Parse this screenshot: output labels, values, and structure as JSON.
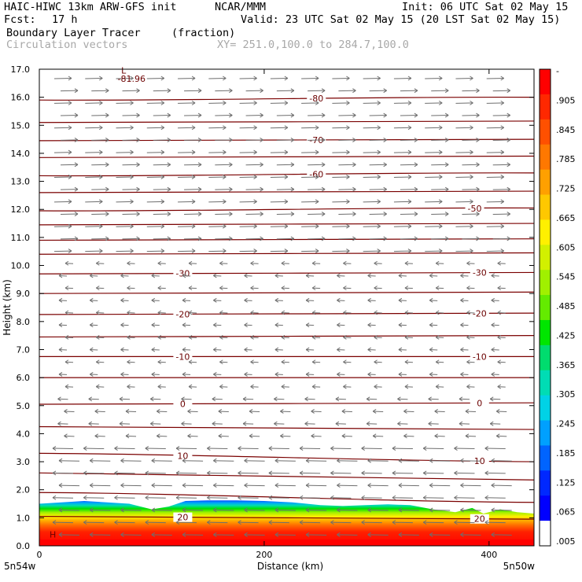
{
  "header": {
    "title_left": "HAIC-HIWC 13km ARW-GFS init",
    "org": "NCAR/MMM",
    "init": "Init: 06 UTC Sat 02 May 15",
    "fcst_label": "Fcst:",
    "fcst_value": "17 h",
    "valid": "Valid: 23 UTC Sat 02 May 15 (20 LST Sat 02 May 15)",
    "field_name": "Boundary Layer Tracer",
    "field_units": "(fraction)",
    "vector_name": "Circulation vectors",
    "xy_range": "XY= 251.0,100.0 to 284.7,100.0"
  },
  "chart_data": {
    "type": "heatmap",
    "xlabel": "Distance (km)",
    "ylabel": "Height (km)",
    "xlim": [
      0,
      440
    ],
    "ylim": [
      0,
      17
    ],
    "x_ticks": [
      0,
      200,
      400
    ],
    "x_tick_labels": [
      "0",
      "200",
      "400"
    ],
    "y_ticks": [
      0,
      1,
      2,
      3,
      4,
      5,
      6,
      7,
      8,
      9,
      10,
      11,
      12,
      13,
      14,
      15,
      16,
      17
    ],
    "y_tick_labels": [
      "0.0",
      "1.0",
      "2.0",
      "3.0",
      "4.0",
      "5.0",
      "6.0",
      "7.0",
      "8.0",
      "9.0",
      "10.0",
      "11.0",
      "12.0",
      "13.0",
      "14.0",
      "15.0",
      "16.0",
      "17.0"
    ],
    "corner_labels": {
      "left": "5n54w",
      "right": "5n50w"
    },
    "colorbar": {
      "labels": [
        "-",
        ".905",
        ".845",
        ".785",
        ".725",
        ".665",
        ".605",
        ".545",
        ".485",
        ".425",
        ".365",
        ".305",
        ".245",
        ".185",
        ".125",
        ".065",
        ".005"
      ],
      "colors": [
        "#ff0000",
        "#ff2800",
        "#ff5000",
        "#ff7800",
        "#ffa000",
        "#ffc800",
        "#fff000",
        "#d2f000",
        "#a0f000",
        "#64eb00",
        "#00e600",
        "#00dc6e",
        "#00dcb4",
        "#00d2e6",
        "#00a0ff",
        "#0064ff",
        "#0028ff",
        "#0000ff",
        "#ffffff"
      ]
    },
    "tracer_surface": {
      "x": [
        0,
        20,
        40,
        60,
        80,
        100,
        115,
        130,
        150,
        175,
        200,
        225,
        250,
        270,
        290,
        310,
        330,
        350,
        370,
        385,
        395,
        410,
        425,
        440
      ],
      "top_height_km": [
        1.5,
        1.55,
        1.6,
        1.55,
        1.5,
        1.3,
        1.4,
        1.6,
        1.62,
        1.62,
        1.6,
        1.55,
        1.45,
        1.42,
        1.45,
        1.48,
        1.45,
        1.3,
        1.2,
        1.35,
        1.15,
        1.3,
        1.2,
        1.15
      ]
    },
    "isotherms": [
      {
        "label": "-80",
        "height_km": [
          15.9,
          16.0
        ]
      },
      {
        "label": "",
        "height_km": [
          15.1,
          15.15
        ]
      },
      {
        "label": "-70",
        "height_km": [
          14.45,
          14.5
        ]
      },
      {
        "label": "",
        "height_km": [
          13.85,
          13.9
        ]
      },
      {
        "label": "-60",
        "height_km": [
          13.2,
          13.3
        ]
      },
      {
        "label": "",
        "height_km": [
          12.6,
          12.65
        ]
      },
      {
        "label": "-50",
        "height_km": [
          11.95,
          12.05
        ]
      },
      {
        "label": "",
        "height_km": [
          11.45,
          11.5
        ]
      },
      {
        "label": "",
        "height_km": [
          10.9,
          10.95
        ]
      },
      {
        "label": "",
        "height_km": [
          10.4,
          10.45
        ]
      },
      {
        "label": "-30",
        "height_km": [
          9.7,
          9.75
        ]
      },
      {
        "label": "",
        "height_km": [
          9.0,
          9.05
        ]
      },
      {
        "label": "-20",
        "height_km": [
          8.25,
          8.3
        ]
      },
      {
        "label": "",
        "height_km": [
          7.45,
          7.5
        ]
      },
      {
        "label": "-10",
        "height_km": [
          6.75,
          6.75
        ]
      },
      {
        "label": "",
        "height_km": [
          6.0,
          6.0
        ]
      },
      {
        "label": "0",
        "height_km": [
          5.05,
          5.1
        ]
      },
      {
        "label": "",
        "height_km": [
          4.25,
          4.15
        ]
      },
      {
        "label": "10",
        "height_km": [
          3.3,
          3.0
        ]
      },
      {
        "label": "",
        "height_km": [
          2.6,
          2.35
        ]
      },
      {
        "label": "",
        "height_km": [
          1.9,
          1.55
        ]
      },
      {
        "label": "20",
        "height_km": [
          1.05,
          0.95
        ]
      }
    ],
    "annotations": [
      {
        "text": "L",
        "x": 75,
        "y": 16.85
      },
      {
        "text": "-81.96",
        "x": 82,
        "y": 16.55
      },
      {
        "text": "H",
        "x": 12,
        "y": 0.3
      }
    ]
  }
}
